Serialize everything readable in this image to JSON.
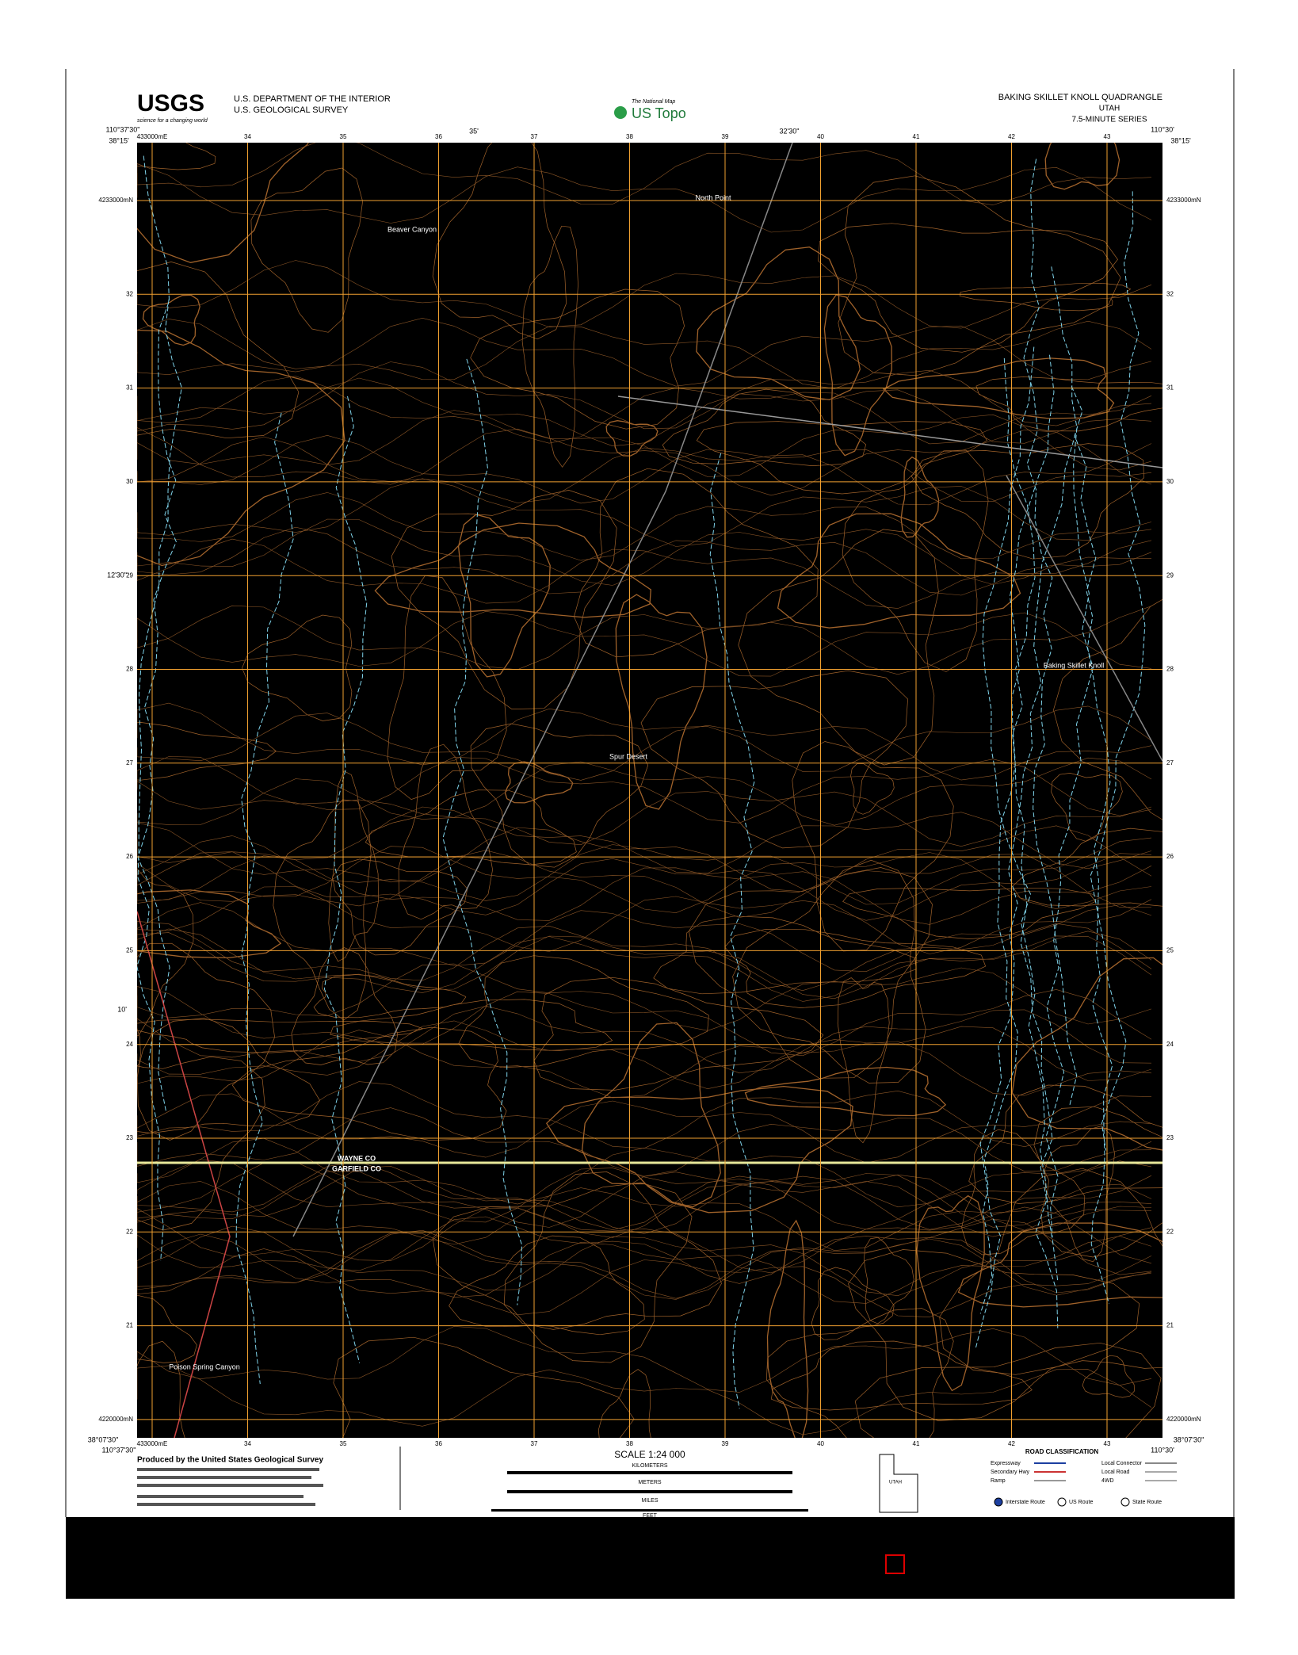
{
  "header": {
    "usgs_logo": "USGS",
    "usgs_tagline": "science for a changing world",
    "department": "U.S. DEPARTMENT OF THE INTERIOR",
    "survey": "U.S. GEOLOGICAL SURVEY",
    "national_map": "The National Map",
    "us_topo": "US Topo",
    "quad_title": "BAKING SKILLET KNOLL QUADRANGLE",
    "state": "UTAH",
    "series": "7.5-MINUTE SERIES"
  },
  "corners": {
    "top_left_lon": "110°37'30\"",
    "top_left_lat": "38°15'",
    "top_right_lon": "110°30'",
    "top_right_lat": "38°15'",
    "bottom_left_lat": "38°07'30\"",
    "bottom_left_lon": "110°37'30\"",
    "bottom_right_lat": "38°07'30\"",
    "bottom_right_lon": "110°30'"
  },
  "edge_ticks": {
    "top": [
      "35'",
      "32'30\""
    ],
    "left": [
      "12'30\"",
      "10'"
    ]
  },
  "grid": {
    "eastings": [
      "433000mE",
      "34",
      "35",
      "36",
      "37",
      "38",
      "39",
      "40",
      "41",
      "42",
      "43"
    ],
    "northings": [
      "4233000mN",
      "32",
      "31",
      "30",
      "29",
      "28",
      "27",
      "26",
      "25",
      "24",
      "23",
      "22",
      "21",
      "4220000mN"
    ]
  },
  "places": [
    "North Point",
    "Beaver Canyon",
    "Baking Skillet Knoll",
    "Spur Desert",
    "Poison Spring Canyon",
    "WAYNE CO",
    "GARFIELD CO"
  ],
  "footer": {
    "produced": "Produced by the United States Geological Survey",
    "scale": "SCALE 1:24 000",
    "kilometers": "KILOMETERS",
    "meters": "METERS",
    "miles": "MILES",
    "feet": "FEET",
    "state_box": "UTAH",
    "road_title": "ROAD CLASSIFICATION",
    "roads": [
      "Expressway",
      "Secondary Hwy",
      "Ramp",
      "Local Connector",
      "Local Road",
      "4WD"
    ],
    "routes": [
      "Interstate Route",
      "US Route",
      "State Route"
    ]
  }
}
